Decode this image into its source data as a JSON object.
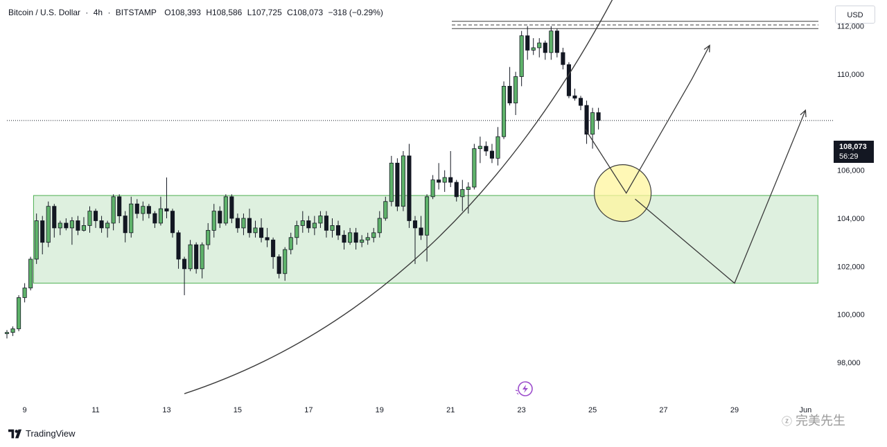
{
  "header": {
    "symbol": "Bitcoin / U.S. Dollar",
    "interval": "4h",
    "exchange": "BITSTAMP",
    "open": "O108,393",
    "high": "H108,586",
    "low": "L107,725",
    "close": "C108,073",
    "change": "−318 (−0.29%)"
  },
  "currency_button": "USD",
  "last_price": {
    "value": "108,073",
    "countdown": "56:29"
  },
  "branding": {
    "logo_text": "TradingView",
    "watermark": "完美先生"
  },
  "chart_data": {
    "type": "candlestick",
    "ylim": [
      96500,
      112800
    ],
    "xlim_days": [
      8.5,
      31.5
    ],
    "y_ticks": [
      98000,
      100000,
      102000,
      104000,
      106000,
      108000,
      110000,
      112000
    ],
    "y_tick_labels": [
      "98,000",
      "100,000",
      "102,000",
      "104,000",
      "106,000",
      "108,000",
      "110,000",
      "112,000"
    ],
    "x_ticks": [
      {
        "day": 9,
        "label": "9"
      },
      {
        "day": 11,
        "label": "11"
      },
      {
        "day": 13,
        "label": "13"
      },
      {
        "day": 15,
        "label": "15"
      },
      {
        "day": 17,
        "label": "17"
      },
      {
        "day": 19,
        "label": "19"
      },
      {
        "day": 21,
        "label": "21"
      },
      {
        "day": 23,
        "label": "23"
      },
      {
        "day": 25,
        "label": "25"
      },
      {
        "day": 27,
        "label": "27"
      },
      {
        "day": 29,
        "label": "29"
      },
      {
        "day": 31,
        "label": "Jun"
      }
    ],
    "candles_start_day": 8.5,
    "candles_per_day": 6,
    "candles": [
      [
        99200,
        99350,
        99000,
        99250
      ],
      [
        99250,
        99500,
        99100,
        99400
      ],
      [
        99400,
        100800,
        99300,
        100700
      ],
      [
        100700,
        101300,
        100500,
        101100
      ],
      [
        101100,
        102400,
        101000,
        102300
      ],
      [
        102300,
        104200,
        102100,
        103900
      ],
      [
        103900,
        104100,
        102500,
        103000
      ],
      [
        103000,
        104700,
        102800,
        104500
      ],
      [
        104500,
        104600,
        103200,
        103600
      ],
      [
        103600,
        103900,
        103300,
        103800
      ],
      [
        103800,
        104000,
        103500,
        103600
      ],
      [
        103600,
        104050,
        102900,
        103900
      ],
      [
        103900,
        104100,
        103300,
        103500
      ],
      [
        103500,
        104050,
        103450,
        103700
      ],
      [
        103700,
        104500,
        103400,
        104300
      ],
      [
        104300,
        104400,
        103600,
        103900
      ],
      [
        103900,
        104100,
        103400,
        103600
      ],
      [
        103600,
        103900,
        103200,
        103800
      ],
      [
        103800,
        105000,
        103500,
        104900
      ],
      [
        104900,
        105000,
        103800,
        104100
      ],
      [
        104100,
        104300,
        103000,
        103400
      ],
      [
        103400,
        104900,
        103200,
        104600
      ],
      [
        104600,
        104800,
        104000,
        104200
      ],
      [
        104200,
        104700,
        103900,
        104500
      ],
      [
        104500,
        104600,
        104000,
        104200
      ],
      [
        104200,
        104300,
        103600,
        103800
      ],
      [
        103800,
        104900,
        103700,
        104400
      ],
      [
        104400,
        105700,
        104000,
        104300
      ],
      [
        104300,
        104400,
        103200,
        103400
      ],
      [
        103400,
        103500,
        101900,
        102300
      ],
      [
        102300,
        102400,
        100800,
        101900
      ],
      [
        101900,
        103100,
        101800,
        102900
      ],
      [
        102900,
        103000,
        101700,
        101900
      ],
      [
        101900,
        103000,
        101500,
        102900
      ],
      [
        102900,
        103800,
        102700,
        103500
      ],
      [
        103500,
        104600,
        103200,
        104300
      ],
      [
        104300,
        104500,
        103600,
        103800
      ],
      [
        103800,
        105000,
        103700,
        104900
      ],
      [
        104900,
        105000,
        103800,
        104000
      ],
      [
        104000,
        104200,
        103400,
        103600
      ],
      [
        103600,
        104200,
        103300,
        104000
      ],
      [
        104000,
        104400,
        103200,
        103400
      ],
      [
        103400,
        103900,
        103200,
        103600
      ],
      [
        103600,
        104000,
        103000,
        103200
      ],
      [
        103200,
        103600,
        102800,
        103100
      ],
      [
        103100,
        103200,
        101900,
        102400
      ],
      [
        102400,
        102500,
        101500,
        101700
      ],
      [
        101700,
        102800,
        101400,
        102700
      ],
      [
        102700,
        103400,
        102500,
        103200
      ],
      [
        103200,
        103900,
        102900,
        103700
      ],
      [
        103700,
        104300,
        103400,
        103900
      ],
      [
        103900,
        104100,
        103400,
        103600
      ],
      [
        103600,
        104100,
        103300,
        103800
      ],
      [
        103800,
        104300,
        103600,
        104100
      ],
      [
        104100,
        104300,
        103200,
        103500
      ],
      [
        103500,
        104000,
        103200,
        103700
      ],
      [
        103700,
        103900,
        103100,
        103300
      ],
      [
        103300,
        103500,
        102700,
        103000
      ],
      [
        103000,
        103600,
        102900,
        103400
      ],
      [
        103400,
        103600,
        102700,
        103000
      ],
      [
        103000,
        103300,
        102800,
        103100
      ],
      [
        103100,
        103400,
        102900,
        103200
      ],
      [
        103200,
        103600,
        103000,
        103400
      ],
      [
        103400,
        104300,
        103200,
        104000
      ],
      [
        104000,
        104900,
        103900,
        104700
      ],
      [
        104700,
        106600,
        104500,
        106300
      ],
      [
        106300,
        106500,
        104300,
        104500
      ],
      [
        104500,
        106800,
        104300,
        106600
      ],
      [
        106600,
        107100,
        103600,
        103900
      ],
      [
        103900,
        104100,
        102100,
        103600
      ],
      [
        103600,
        104100,
        103100,
        103300
      ],
      [
        103300,
        105000,
        102200,
        104900
      ],
      [
        104900,
        105800,
        104800,
        105600
      ],
      [
        105600,
        106300,
        105200,
        105500
      ],
      [
        105500,
        106000,
        105100,
        105700
      ],
      [
        105700,
        106800,
        105300,
        105500
      ],
      [
        105500,
        105600,
        104700,
        104900
      ],
      [
        104900,
        105600,
        104300,
        105200
      ],
      [
        105200,
        105500,
        104200,
        105300
      ],
      [
        105300,
        107100,
        105200,
        106900
      ],
      [
        106900,
        107400,
        106300,
        107000
      ],
      [
        107000,
        107200,
        106600,
        106800
      ],
      [
        106800,
        107100,
        106300,
        106500
      ],
      [
        106500,
        107800,
        106200,
        107400
      ],
      [
        107400,
        109700,
        107300,
        109500
      ],
      [
        109500,
        110300,
        108700,
        108800
      ],
      [
        108800,
        110100,
        108300,
        109900
      ],
      [
        109900,
        111800,
        109500,
        111600
      ],
      [
        111600,
        112000,
        110600,
        111000
      ],
      [
        111000,
        111500,
        110800,
        111100
      ],
      [
        111100,
        111500,
        110700,
        111300
      ],
      [
        111300,
        111400,
        110600,
        110900
      ],
      [
        110900,
        112000,
        110600,
        111800
      ],
      [
        111800,
        111900,
        110700,
        110900
      ],
      [
        110900,
        111100,
        110200,
        110400
      ],
      [
        110400,
        110500,
        109000,
        109100
      ],
      [
        109100,
        109400,
        108900,
        109000
      ],
      [
        109000,
        109100,
        108500,
        108700
      ],
      [
        108700,
        108900,
        107100,
        107500
      ],
      [
        107500,
        108600,
        106900,
        108400
      ],
      [
        108400,
        108600,
        107700,
        108073
      ]
    ],
    "support_zone": {
      "y_low": 101300,
      "y_high": 104950,
      "x_start_day": 9.25,
      "x_end_day": 31.35
    },
    "resistance_lines": [
      {
        "price": 112200,
        "style": "solid"
      },
      {
        "price": 112050,
        "style": "dashed"
      },
      {
        "price": 111900,
        "style": "solid"
      }
    ],
    "last_price_line": 108073,
    "curve": {
      "start": [
        13.5,
        96700
      ],
      "end": [
        25.7,
        113500
      ]
    },
    "projection_path_1": [
      [
        24.8,
        107700
      ],
      [
        25.95,
        105050
      ],
      [
        27.8,
        109800
      ],
      [
        28.3,
        111200
      ]
    ],
    "projection_path_2": [
      [
        26.2,
        104800
      ],
      [
        29.0,
        101300
      ],
      [
        31.0,
        108500
      ]
    ],
    "highlight_circle": {
      "center": [
        25.85,
        105050
      ],
      "radius_px": 41
    }
  }
}
